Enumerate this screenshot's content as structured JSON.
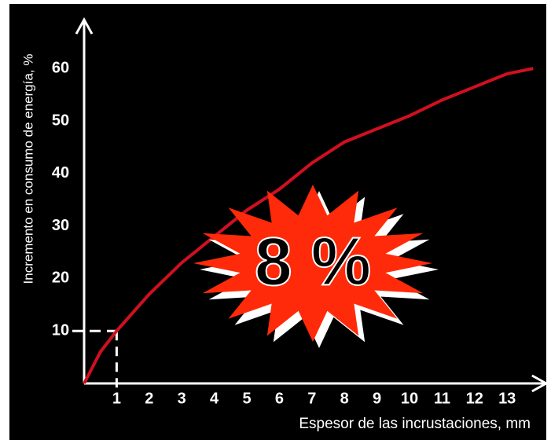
{
  "chart_data": {
    "type": "line",
    "x": [
      0,
      0.5,
      1,
      2,
      3,
      4,
      5,
      6,
      7,
      8,
      9,
      10,
      11,
      12,
      13,
      13.8
    ],
    "series": [
      {
        "name": "Incremento",
        "color": "#d01020",
        "values": [
          0,
          6,
          10,
          17,
          23,
          28,
          33,
          37,
          42,
          46,
          48.5,
          51,
          54,
          56.5,
          59,
          60
        ]
      }
    ],
    "xlabel": "Espesor de las incrustaciones, mm",
    "ylabel": "Incremento en consumo de energía, %",
    "annotation": "8 %",
    "xlim": [
      0,
      14.2
    ],
    "ylim": [
      0,
      69.3
    ],
    "xticks": [
      1,
      2,
      3,
      4,
      5,
      6,
      7,
      8,
      9,
      10,
      11,
      12,
      13
    ],
    "yticks": [
      10,
      20,
      30,
      40,
      50,
      60
    ],
    "grid": false
  }
}
